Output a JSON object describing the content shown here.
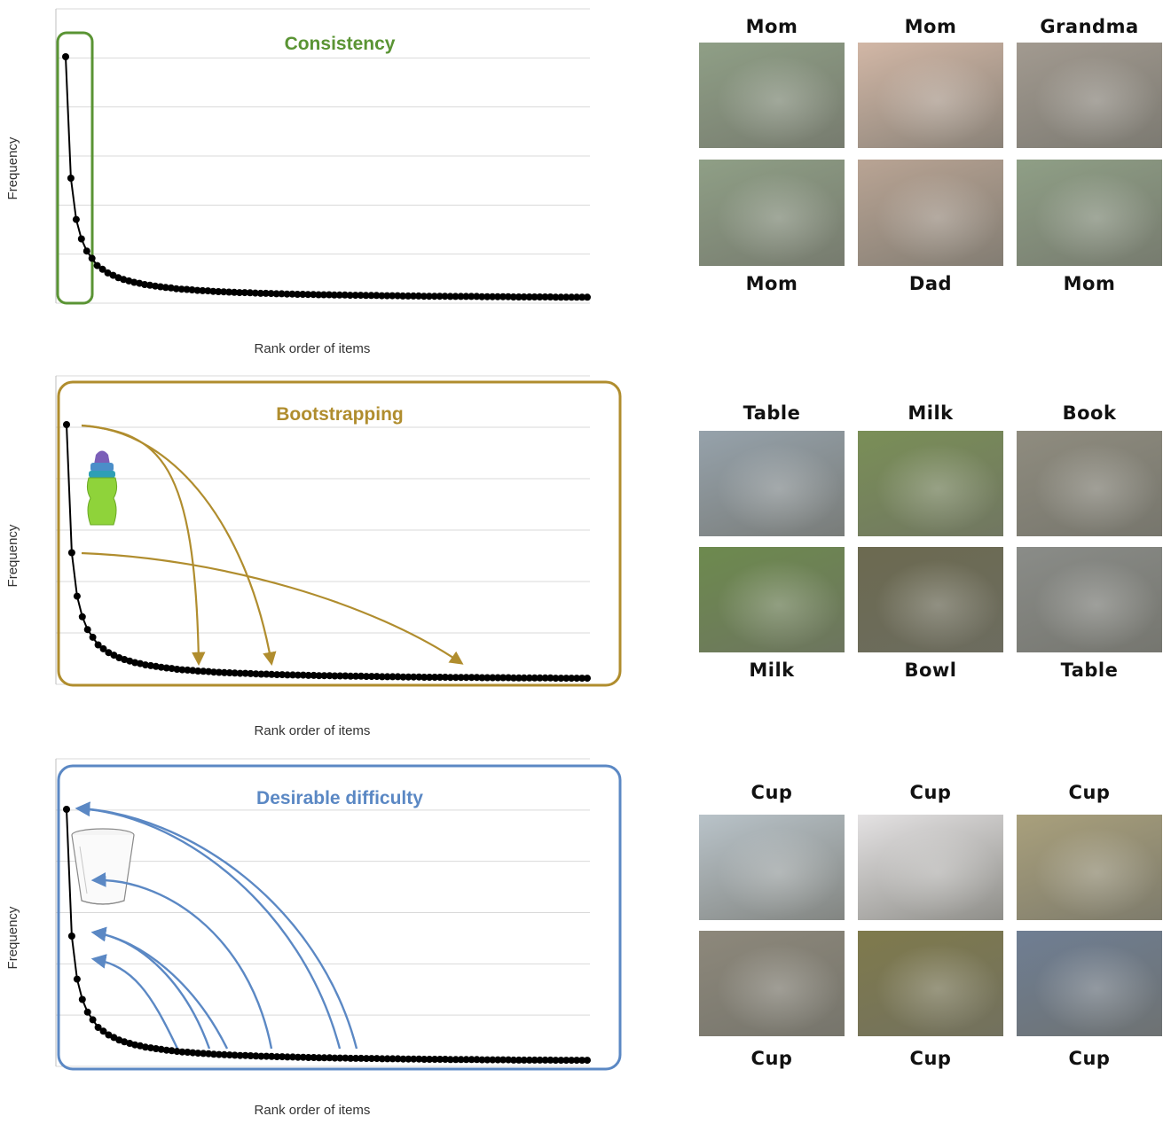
{
  "colors": {
    "consistency": "#5a9434",
    "bootstrapping": "#b08d2e",
    "desirable": "#5b88c4",
    "curve": "#000000",
    "grid": "#d9d9d9"
  },
  "chart_data": [
    {
      "type": "line",
      "title": "Consistency",
      "xlabel": "Rank order of items",
      "ylabel": "Frequency",
      "grid": true,
      "y": [
        1.0,
        0.5,
        0.33,
        0.25,
        0.2,
        0.17,
        0.14,
        0.125,
        0.11,
        0.1,
        0.09,
        0.083,
        0.077,
        0.071,
        0.067,
        0.062,
        0.059,
        0.056,
        0.053,
        0.05,
        0.048,
        0.045,
        0.043,
        0.042,
        0.04,
        0.038,
        0.037,
        0.036,
        0.034,
        0.033,
        0.032,
        0.031,
        0.03,
        0.029,
        0.029,
        0.028,
        0.027,
        0.026,
        0.026,
        0.025,
        0.024,
        0.024,
        0.023,
        0.023,
        0.022,
        0.022,
        0.021,
        0.021,
        0.02,
        0.02,
        0.02,
        0.019,
        0.019,
        0.019,
        0.018,
        0.018,
        0.018,
        0.017,
        0.017,
        0.017,
        0.016,
        0.016,
        0.016,
        0.016,
        0.015,
        0.015,
        0.015,
        0.015,
        0.014,
        0.014,
        0.014,
        0.014,
        0.014,
        0.013,
        0.013,
        0.013,
        0.013,
        0.013,
        0.013,
        0.012,
        0.012,
        0.012,
        0.012,
        0.012,
        0.012,
        0.011,
        0.011,
        0.011,
        0.011,
        0.011,
        0.011,
        0.011,
        0.011,
        0.01,
        0.01,
        0.01,
        0.01,
        0.01,
        0.01,
        0.01
      ]
    },
    {
      "type": "line",
      "title": "Bootstrapping",
      "xlabel": "Rank order of items",
      "ylabel": "Frequency",
      "grid": true,
      "y": [
        1.0,
        0.5,
        0.33,
        0.25,
        0.2,
        0.17,
        0.14,
        0.125,
        0.11,
        0.1,
        0.09,
        0.083,
        0.077,
        0.071,
        0.067,
        0.062,
        0.059,
        0.056,
        0.053,
        0.05,
        0.048,
        0.045,
        0.043,
        0.042,
        0.04,
        0.038,
        0.037,
        0.036,
        0.034,
        0.033,
        0.032,
        0.031,
        0.03,
        0.029,
        0.029,
        0.028,
        0.027,
        0.026,
        0.026,
        0.025,
        0.024,
        0.024,
        0.023,
        0.023,
        0.022,
        0.022,
        0.021,
        0.021,
        0.02,
        0.02,
        0.02,
        0.019,
        0.019,
        0.019,
        0.018,
        0.018,
        0.018,
        0.017,
        0.017,
        0.017,
        0.016,
        0.016,
        0.016,
        0.016,
        0.015,
        0.015,
        0.015,
        0.015,
        0.014,
        0.014,
        0.014,
        0.014,
        0.014,
        0.013,
        0.013,
        0.013,
        0.013,
        0.013,
        0.013,
        0.012,
        0.012,
        0.012,
        0.012,
        0.012,
        0.012,
        0.011,
        0.011,
        0.011,
        0.011,
        0.011,
        0.011,
        0.011,
        0.011,
        0.01,
        0.01,
        0.01,
        0.01,
        0.01,
        0.01,
        0.01
      ]
    },
    {
      "type": "line",
      "title": "Desirable difficulty",
      "xlabel": "Rank order of items",
      "ylabel": "Frequency",
      "grid": true,
      "y": [
        1.0,
        0.5,
        0.33,
        0.25,
        0.2,
        0.17,
        0.14,
        0.125,
        0.11,
        0.1,
        0.09,
        0.083,
        0.077,
        0.071,
        0.067,
        0.062,
        0.059,
        0.056,
        0.053,
        0.05,
        0.048,
        0.045,
        0.043,
        0.042,
        0.04,
        0.038,
        0.037,
        0.036,
        0.034,
        0.033,
        0.032,
        0.031,
        0.03,
        0.029,
        0.029,
        0.028,
        0.027,
        0.026,
        0.026,
        0.025,
        0.024,
        0.024,
        0.023,
        0.023,
        0.022,
        0.022,
        0.021,
        0.021,
        0.02,
        0.02,
        0.02,
        0.019,
        0.019,
        0.019,
        0.018,
        0.018,
        0.018,
        0.017,
        0.017,
        0.017,
        0.016,
        0.016,
        0.016,
        0.016,
        0.015,
        0.015,
        0.015,
        0.015,
        0.014,
        0.014,
        0.014,
        0.014,
        0.014,
        0.013,
        0.013,
        0.013,
        0.013,
        0.013,
        0.013,
        0.012,
        0.012,
        0.012,
        0.012,
        0.012,
        0.012,
        0.011,
        0.011,
        0.011,
        0.011,
        0.011,
        0.011,
        0.011,
        0.011,
        0.01,
        0.01,
        0.01,
        0.01,
        0.01,
        0.01,
        0.01
      ]
    }
  ],
  "photo_rows": [
    {
      "top_labels": [
        "Mom",
        "Mom",
        "Grandma"
      ],
      "bottom_labels": [
        "Mom",
        "Dad",
        "Mom"
      ],
      "palette": [
        "#8f9f86",
        "#d2b7a6",
        "#a29a90",
        "#8f9f86",
        "#b9a494",
        "#8f9f86"
      ]
    },
    {
      "top_labels": [
        "Table",
        "Milk",
        "Book"
      ],
      "bottom_labels": [
        "Milk",
        "Bowl",
        "Table"
      ],
      "palette": [
        "#96a2ab",
        "#7a8f57",
        "#8f8c7f",
        "#6d8a4e",
        "#6c6a50",
        "#8a8c88"
      ]
    },
    {
      "top_labels": [
        "Cup",
        "Cup",
        "Cup"
      ],
      "bottom_labels": [
        "Cup",
        "Cup",
        "Cup"
      ],
      "palette": [
        "#b9c3c9",
        "#e4e2e3",
        "#a9a07c",
        "#8d887b",
        "#7f7a4c",
        "#6f7e93"
      ]
    }
  ]
}
